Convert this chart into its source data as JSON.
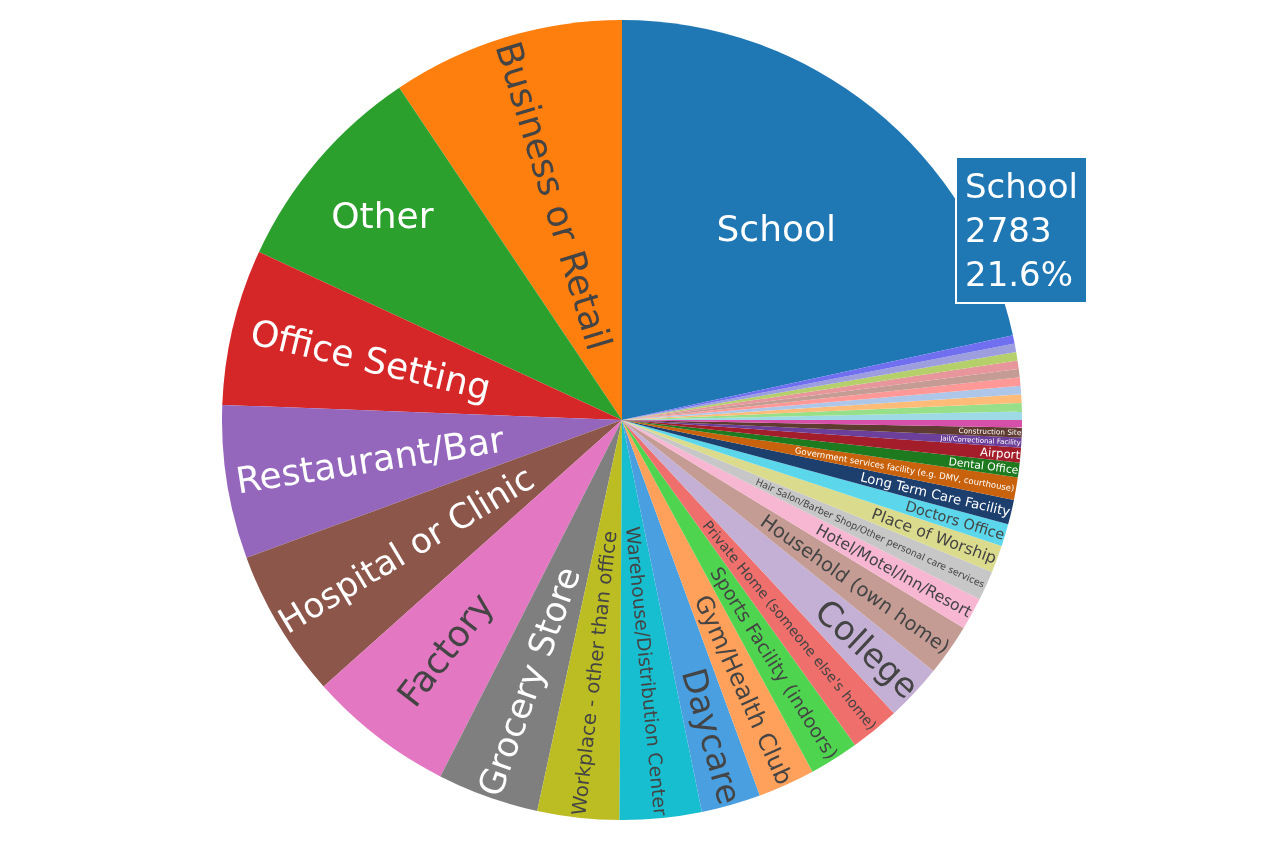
{
  "chart_data": {
    "type": "pie",
    "categories": [
      "School",
      "Business or Retail",
      "Other",
      "Office Setting",
      "Restaurant/Bar",
      "Hospital or Clinic",
      "Factory",
      "Grocery Store",
      "Workplace - other than office",
      "Warehouse/Distribution Center",
      "Daycare",
      "Gym/Health Club",
      "Sports Facility (indoors)",
      "Private Home (someone else's home)",
      "College",
      "Household (own home)",
      "Hotel/Motel/Inn/Resort",
      "Hair Salon/Barber Shop/Other personal care services",
      "Place of Worship",
      "Doctors Office",
      "Long Term Care Facility",
      "Government services facility (e.g. DMV, courthouse)",
      "Dental Office",
      "Airport",
      "Jail/Correctional Facility",
      "Construction Site",
      null,
      null,
      null,
      null,
      null,
      null,
      null,
      null,
      null,
      null,
      null
    ],
    "values": [
      21.6,
      9.4,
      8.7,
      6.3,
      6.2,
      6.0,
      5.9,
      4.1,
      3.3,
      3.3,
      2.4,
      2.3,
      2.0,
      2.0,
      2.3,
      2.1,
      1.3,
      1.2,
      1.1,
      0.9,
      1.0,
      0.9,
      0.6,
      0.6,
      0.4,
      0.4,
      0.3,
      0.34,
      0.34,
      0.34,
      0.34,
      0.34,
      0.34,
      0.34,
      0.34,
      0.34,
      0.34
    ],
    "colors": [
      "#1f77b4",
      "#ff7f0e",
      "#2ca02c",
      "#d62728",
      "#9467bd",
      "#8c564b",
      "#e377c2",
      "#7f7f7f",
      "#bcbd22",
      "#17becf",
      "#4a9fe0",
      "#ffa15a",
      "#4fd44f",
      "#ef6f6c",
      "#c5b0d5",
      "#c49c94",
      "#f7b6d2",
      "#c7c7c7",
      "#dbdb8d",
      "#5bd6ea",
      "#1c3f6e",
      "#c8620c",
      "#1e7a1e",
      "#a31e2a",
      "#6b3f9a",
      "#5e3a30",
      "#d64fa8",
      "#9edae5",
      "#98df8a",
      "#ffbb78",
      "#aec7e8",
      "#ff9896",
      "#c49c94",
      "#e7969c",
      "#b5cf6b",
      "#9c9ede",
      "#6f6ff0"
    ],
    "annotations": [
      "School\n2783\n21.6%"
    ]
  }
}
